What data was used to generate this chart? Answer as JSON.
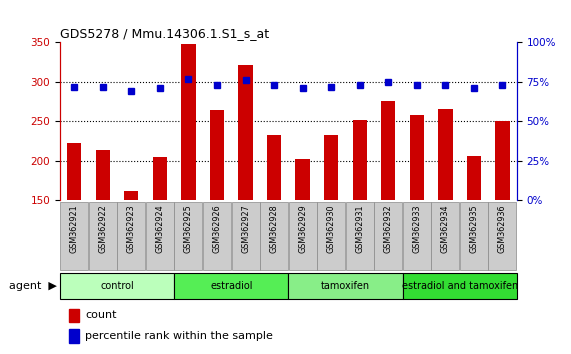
{
  "title": "GDS5278 / Mmu.14306.1.S1_s_at",
  "samples": [
    "GSM362921",
    "GSM362922",
    "GSM362923",
    "GSM362924",
    "GSM362925",
    "GSM362926",
    "GSM362927",
    "GSM362928",
    "GSM362929",
    "GSM362930",
    "GSM362931",
    "GSM362932",
    "GSM362933",
    "GSM362934",
    "GSM362935",
    "GSM362936"
  ],
  "counts": [
    222,
    213,
    161,
    205,
    348,
    264,
    322,
    233,
    202,
    233,
    251,
    276,
    258,
    265,
    206,
    250
  ],
  "percentiles": [
    72,
    72,
    69,
    71,
    77,
    73,
    76,
    73,
    71,
    72,
    73,
    75,
    73,
    73,
    71,
    73
  ],
  "groups": [
    {
      "label": "control",
      "start": 0,
      "end": 4,
      "color": "#bbffbb"
    },
    {
      "label": "estradiol",
      "start": 4,
      "end": 8,
      "color": "#55ee55"
    },
    {
      "label": "tamoxifen",
      "start": 8,
      "end": 12,
      "color": "#88ee88"
    },
    {
      "label": "estradiol and tamoxifen",
      "start": 12,
      "end": 16,
      "color": "#33dd33"
    }
  ],
  "bar_color": "#cc0000",
  "dot_color": "#0000cc",
  "ylim_left": [
    150,
    350
  ],
  "ylim_right": [
    0,
    100
  ],
  "yticks_left": [
    150,
    200,
    250,
    300,
    350
  ],
  "yticks_right": [
    0,
    25,
    50,
    75,
    100
  ],
  "grid_yticks": [
    200,
    250,
    300
  ],
  "background_color": "#ffffff",
  "tick_box_color": "#cccccc"
}
